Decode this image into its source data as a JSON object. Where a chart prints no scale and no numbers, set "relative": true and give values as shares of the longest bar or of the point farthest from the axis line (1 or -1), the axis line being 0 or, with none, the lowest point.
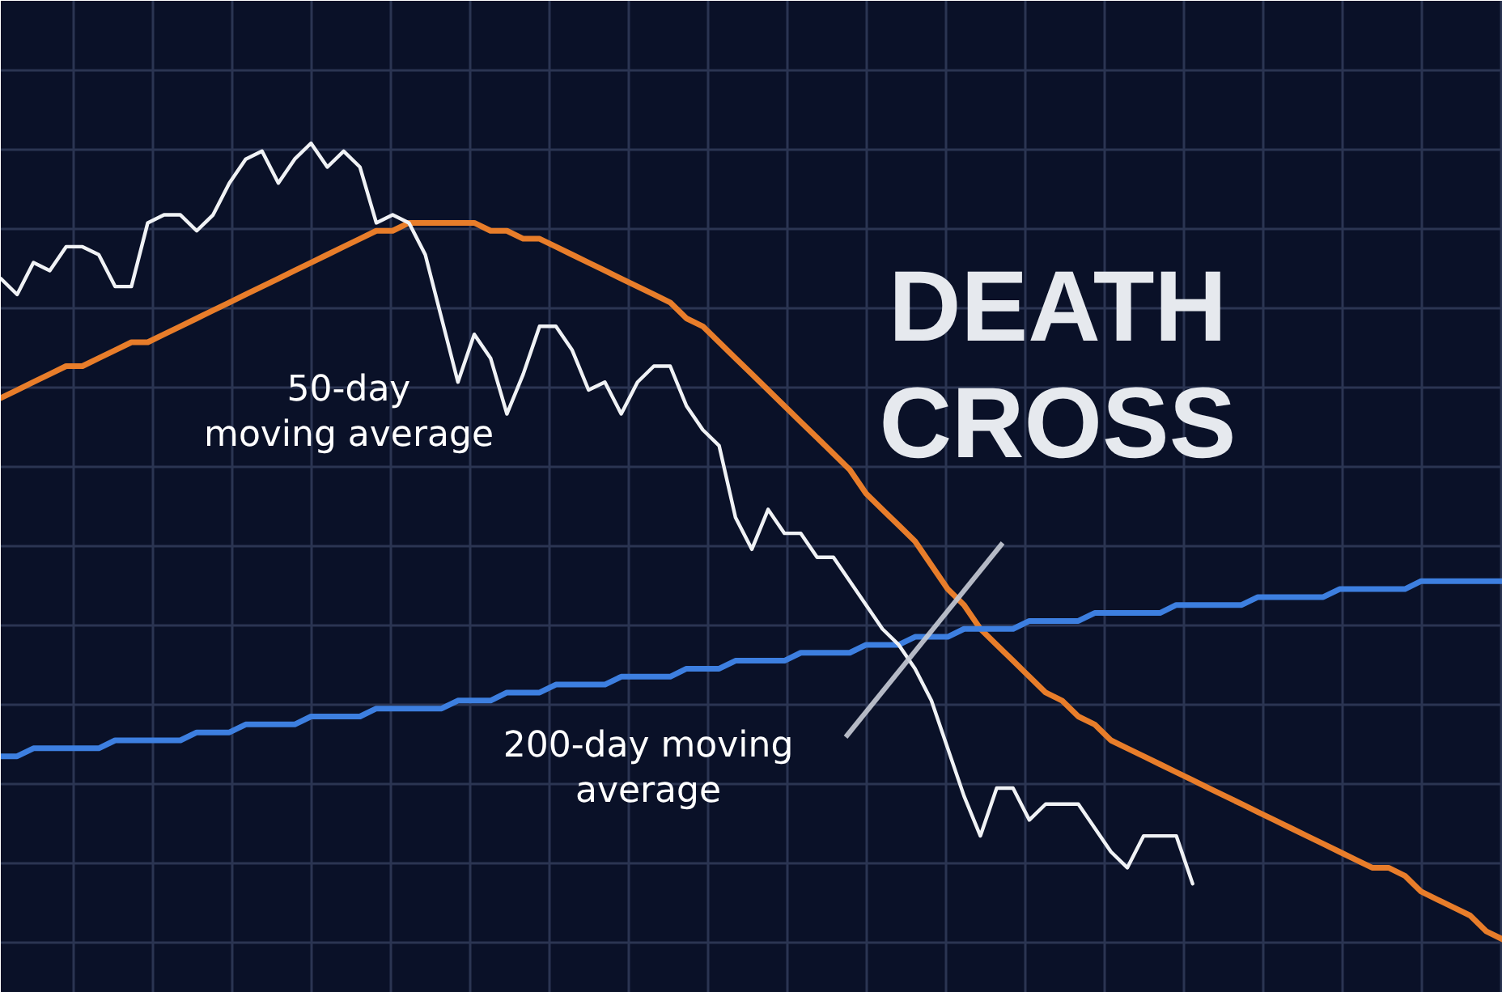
{
  "chart_data": {
    "type": "line",
    "title": "DEATH CROSS",
    "relative": true,
    "grid": true,
    "categories": [
      null,
      null,
      null,
      null,
      null,
      null,
      null,
      null,
      null,
      null,
      null,
      null,
      null,
      null,
      null,
      null,
      null,
      null,
      null,
      null,
      null,
      null,
      null,
      null,
      null,
      null,
      null,
      null,
      null,
      null,
      null,
      null,
      null,
      null,
      null,
      null,
      null,
      null,
      null,
      null,
      null,
      null,
      null,
      null,
      null,
      null,
      null,
      null,
      null,
      null,
      null,
      null,
      null,
      null,
      null,
      null,
      null,
      null,
      null,
      null,
      null,
      null,
      null,
      null,
      null,
      null,
      null,
      null,
      null,
      null,
      null,
      null,
      null,
      null,
      null,
      null,
      null,
      null,
      null,
      null,
      null,
      null,
      null,
      null,
      null,
      null,
      null,
      null,
      null,
      null,
      null,
      null,
      null
    ],
    "series": [
      {
        "name": "50-day\nmoving average",
        "color": "#e87d2a",
        "values": [
          0.68,
          0.69,
          0.7,
          0.71,
          0.72,
          0.72,
          0.73,
          0.74,
          0.75,
          0.75,
          0.76,
          0.77,
          0.78,
          0.79,
          0.8,
          0.81,
          0.82,
          0.83,
          0.84,
          0.85,
          0.86,
          0.87,
          0.88,
          0.89,
          0.89,
          0.9,
          0.9,
          0.9,
          0.9,
          0.9,
          0.89,
          0.89,
          0.88,
          0.88,
          0.87,
          0.86,
          0.85,
          0.84,
          0.83,
          0.82,
          0.81,
          0.8,
          0.78,
          0.77,
          0.75,
          0.73,
          0.71,
          0.69,
          0.67,
          0.65,
          0.63,
          0.61,
          0.59,
          0.56,
          0.54,
          0.52,
          0.5,
          0.47,
          0.44,
          0.42,
          0.39,
          0.37,
          0.35,
          0.33,
          0.31,
          0.3,
          0.28,
          0.27,
          0.25,
          0.24,
          0.23,
          0.22,
          0.21,
          0.2,
          0.19,
          0.18,
          0.17,
          0.16,
          0.15,
          0.14,
          0.13,
          0.12,
          0.11,
          0.1,
          0.09,
          0.09,
          0.08,
          0.06,
          0.05,
          0.04,
          0.03,
          0.01,
          0
        ]
      },
      {
        "name": "200-day moving\naverage",
        "color": "#3d7fe0",
        "values": [
          0.23,
          0.23,
          0.24,
          0.24,
          0.24,
          0.24,
          0.24,
          0.25,
          0.25,
          0.25,
          0.25,
          0.25,
          0.26,
          0.26,
          0.26,
          0.27,
          0.27,
          0.27,
          0.27,
          0.28,
          0.28,
          0.28,
          0.28,
          0.29,
          0.29,
          0.29,
          0.29,
          0.29,
          0.3,
          0.3,
          0.3,
          0.31,
          0.31,
          0.31,
          0.32,
          0.32,
          0.32,
          0.32,
          0.33,
          0.33,
          0.33,
          0.33,
          0.34,
          0.34,
          0.34,
          0.35,
          0.35,
          0.35,
          0.35,
          0.36,
          0.36,
          0.36,
          0.36,
          0.37,
          0.37,
          0.37,
          0.38,
          0.38,
          0.38,
          0.39,
          0.39,
          0.39,
          0.39,
          0.4,
          0.4,
          0.4,
          0.4,
          0.41,
          0.41,
          0.41,
          0.41,
          0.41,
          0.42,
          0.42,
          0.42,
          0.42,
          0.42,
          0.43,
          0.43,
          0.43,
          0.43,
          0.43,
          0.44,
          0.44,
          0.44,
          0.44,
          0.44,
          0.45,
          0.45,
          0.45,
          0.45,
          0.45,
          0.45
        ]
      },
      {
        "color": "#f0f2f5",
        "values": [
          0.83,
          0.81,
          0.85,
          0.84,
          0.87,
          0.87,
          0.86,
          0.82,
          0.82,
          0.9,
          0.91,
          0.91,
          0.89,
          0.91,
          0.95,
          0.98,
          0.99,
          0.95,
          0.98,
          1.0,
          0.97,
          0.99,
          0.97,
          0.9,
          0.91,
          0.9,
          0.86,
          0.78,
          0.7,
          0.76,
          0.73,
          0.66,
          0.71,
          0.77,
          0.77,
          0.74,
          0.69,
          0.7,
          0.66,
          0.7,
          0.72,
          0.72,
          0.67,
          0.64,
          0.62,
          0.53,
          0.49,
          0.54,
          0.51,
          0.51,
          0.48,
          0.48,
          0.45,
          0.42,
          0.39,
          0.37,
          0.34,
          0.3,
          0.24,
          0.18,
          0.13,
          0.19,
          0.19,
          0.15,
          0.17,
          0.17,
          0.17,
          0.14,
          0.11,
          0.09,
          0.13,
          0.13,
          0.13,
          0.07,
          null,
          null,
          null,
          null,
          null,
          null,
          null,
          null,
          null,
          null,
          null,
          null,
          null,
          null,
          null,
          null,
          null,
          null,
          null
        ]
      }
    ]
  }
}
